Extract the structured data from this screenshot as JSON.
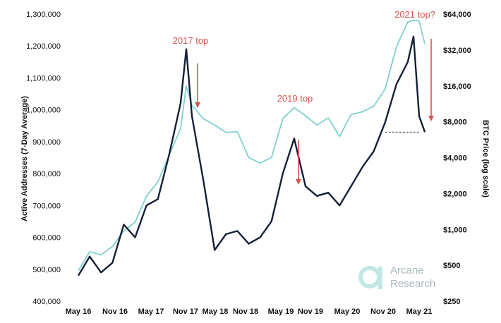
{
  "chart_data": {
    "type": "line",
    "title": "",
    "x_ticks": [
      "May 16",
      "Nov 16",
      "May 17",
      "Nov 17",
      "May 18",
      "Nov 18",
      "May 19",
      "Nov 19",
      "May 20",
      "Nov 20",
      "May 21"
    ],
    "y_left": {
      "label": "Active Addresses (7-Day Average)",
      "ylim": [
        400000,
        1300000
      ],
      "tick_labels": [
        "400,000",
        "500,000",
        "600,000",
        "700,000",
        "800,000",
        "900,000",
        "1,000,000",
        "1,100,000",
        "1,200,000",
        "1,300,000"
      ],
      "tick_values": [
        400000,
        500000,
        600000,
        700000,
        800000,
        900000,
        1000000,
        1100000,
        1200000,
        1300000
      ]
    },
    "y_right": {
      "label": "BTC Price (log scale)",
      "scale": "log",
      "ylim": [
        250,
        64000
      ],
      "tick_labels": [
        "$250",
        "$500",
        "$1,000",
        "$2,000",
        "$4,000",
        "$8,000",
        "$16,000",
        "$32,000",
        "$64,000"
      ],
      "tick_values": [
        250,
        500,
        1000,
        2000,
        4000,
        8000,
        16000,
        32000,
        64000
      ]
    },
    "series": [
      {
        "name": "",
        "axis": "left",
        "color": "#152038",
        "x": [
          "May 16",
          "Jul 16",
          "Sep 16",
          "Nov 16",
          "Jan 17",
          "Mar 17",
          "May 17",
          "Jul 17",
          "Sep 17",
          "Nov 17",
          "Dec 17",
          "Jan 18",
          "Mar 18",
          "May 18",
          "Jul 18",
          "Sep 18",
          "Nov 18",
          "Jan 19",
          "Mar 19",
          "May 19",
          "Jul 19",
          "Sep 19",
          "Nov 19",
          "Jan 20",
          "Mar 20",
          "May 20",
          "Jul 20",
          "Sep 20",
          "Nov 20",
          "Jan 21",
          "Mar 21",
          "Apr 21",
          "May 21",
          "Jun 21"
        ],
        "values": [
          480000,
          540000,
          490000,
          520000,
          640000,
          600000,
          700000,
          720000,
          860000,
          1020000,
          1190000,
          980000,
          780000,
          560000,
          610000,
          620000,
          580000,
          600000,
          650000,
          800000,
          910000,
          760000,
          730000,
          740000,
          700000,
          760000,
          820000,
          870000,
          960000,
          1080000,
          1150000,
          1230000,
          980000,
          930000
        ]
      },
      {
        "name": "",
        "axis": "right",
        "color": "#7fd1cd",
        "x": [
          "May 16",
          "Jul 16",
          "Sep 16",
          "Nov 16",
          "Jan 17",
          "Mar 17",
          "May 17",
          "Jul 17",
          "Sep 17",
          "Nov 17",
          "Dec 17",
          "Jan 18",
          "Mar 18",
          "May 18",
          "Jul 18",
          "Sep 18",
          "Nov 18",
          "Jan 19",
          "Mar 19",
          "May 19",
          "Jul 19",
          "Sep 19",
          "Nov 19",
          "Jan 20",
          "Mar 20",
          "May 20",
          "Jul 20",
          "Sep 20",
          "Nov 20",
          "Jan 21",
          "Mar 21",
          "Apr 21",
          "May 21",
          "Jun 21"
        ],
        "values": [
          450,
          650,
          610,
          720,
          970,
          1150,
          1900,
          2500,
          4200,
          7000,
          16000,
          11000,
          8500,
          7500,
          6500,
          6600,
          4000,
          3600,
          4000,
          8500,
          10500,
          9000,
          7500,
          8600,
          6000,
          9200,
          9700,
          10800,
          15000,
          34000,
          55000,
          57000,
          56000,
          36000
        ]
      }
    ],
    "annotations": [
      {
        "text": "2017 top",
        "x": "Nov 17"
      },
      {
        "text": "2019 top",
        "x": "Jun 19"
      },
      {
        "text": "2021 top?",
        "x": "Apr 21"
      }
    ],
    "reference_line": {
      "value": 930000,
      "axis": "left",
      "style": "dashed",
      "from": "Nov 20",
      "to": "May 21"
    },
    "grid": false,
    "legend": "none"
  },
  "logo": {
    "line1": "Arcane",
    "line2": "Research"
  }
}
